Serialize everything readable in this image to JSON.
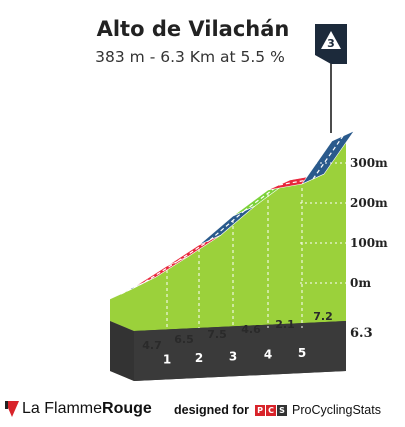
{
  "title": "Alto de Vilachán",
  "subtitle": "383 m - 6.3 Km at 5.5 %",
  "category": "3",
  "chart_data": {
    "type": "area",
    "altitude_labels": [
      "300m",
      "200m",
      "100m",
      "0m"
    ],
    "altitude_ticks": [
      300,
      200,
      100,
      0
    ],
    "segments": [
      {
        "gradient": "4.7",
        "color": "#2a5a8c"
      },
      {
        "gradient": "6.5",
        "color": "#e8273c"
      },
      {
        "gradient": "7.5",
        "color": "#e8273c"
      },
      {
        "gradient": "4.6",
        "color": "#2a5a8c"
      },
      {
        "gradient": "2.1",
        "color": "#7cd23a"
      },
      {
        "gradient": "7.2",
        "color": "#e8273c"
      },
      {
        "gradient": "",
        "color": "#2a5a8c"
      }
    ],
    "km_markers": [
      "1",
      "2",
      "3",
      "4",
      "5"
    ],
    "distance_end": "6.3"
  },
  "colors": {
    "fill_green": "#9bd13b",
    "side_gray": "#b2ab9e",
    "base_dark": "#333333"
  },
  "footer": {
    "brand_part1": "La Flamme",
    "brand_part2": "Rouge",
    "designed_for": "designed for",
    "pcs_logo": [
      "P",
      "C",
      "S"
    ],
    "site_name": "ProCyclingStats"
  }
}
